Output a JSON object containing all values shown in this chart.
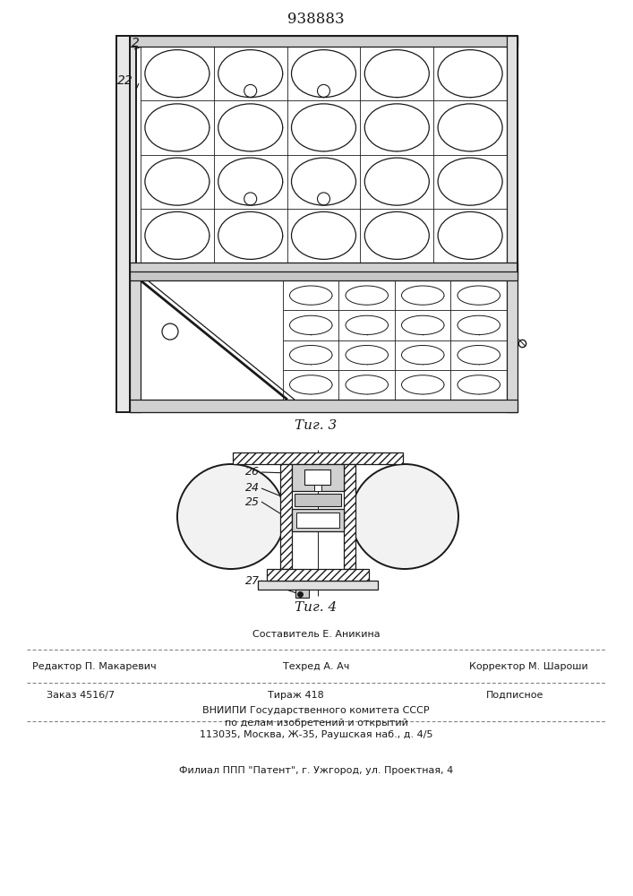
{
  "patent_number": "938883",
  "fig3_label": "Τиг. 3",
  "fig4_label": "Τиг. 4",
  "label_2": "2",
  "label_22": "22",
  "label_24": "24",
  "label_25": "25",
  "label_26": "26",
  "label_27": "27",
  "footer_line1_center": "Составитель Е. Аникина",
  "footer_line1_left": "Редактор П. Макаревич",
  "footer_line1_mid": "Техред А. Ач",
  "footer_line1_right": "Корректор М. Шароши",
  "footer_line2_left": "Заказ 4516/7",
  "footer_line2_center": "Тираж 418",
  "footer_line2_right": "Подписное",
  "footer_line3": "ВНИИПИ Государственного комитета СССР",
  "footer_line4": "по делам изобретений и открытий",
  "footer_line5": "113035, Москва, Ж-35, Раушская наб., д. 4/5",
  "footer_line6": "Филиал ППП \"Патент\", г. Ужгород, ул. Проектная, 4",
  "bg_color": "#ffffff",
  "line_color": "#1a1a1a"
}
